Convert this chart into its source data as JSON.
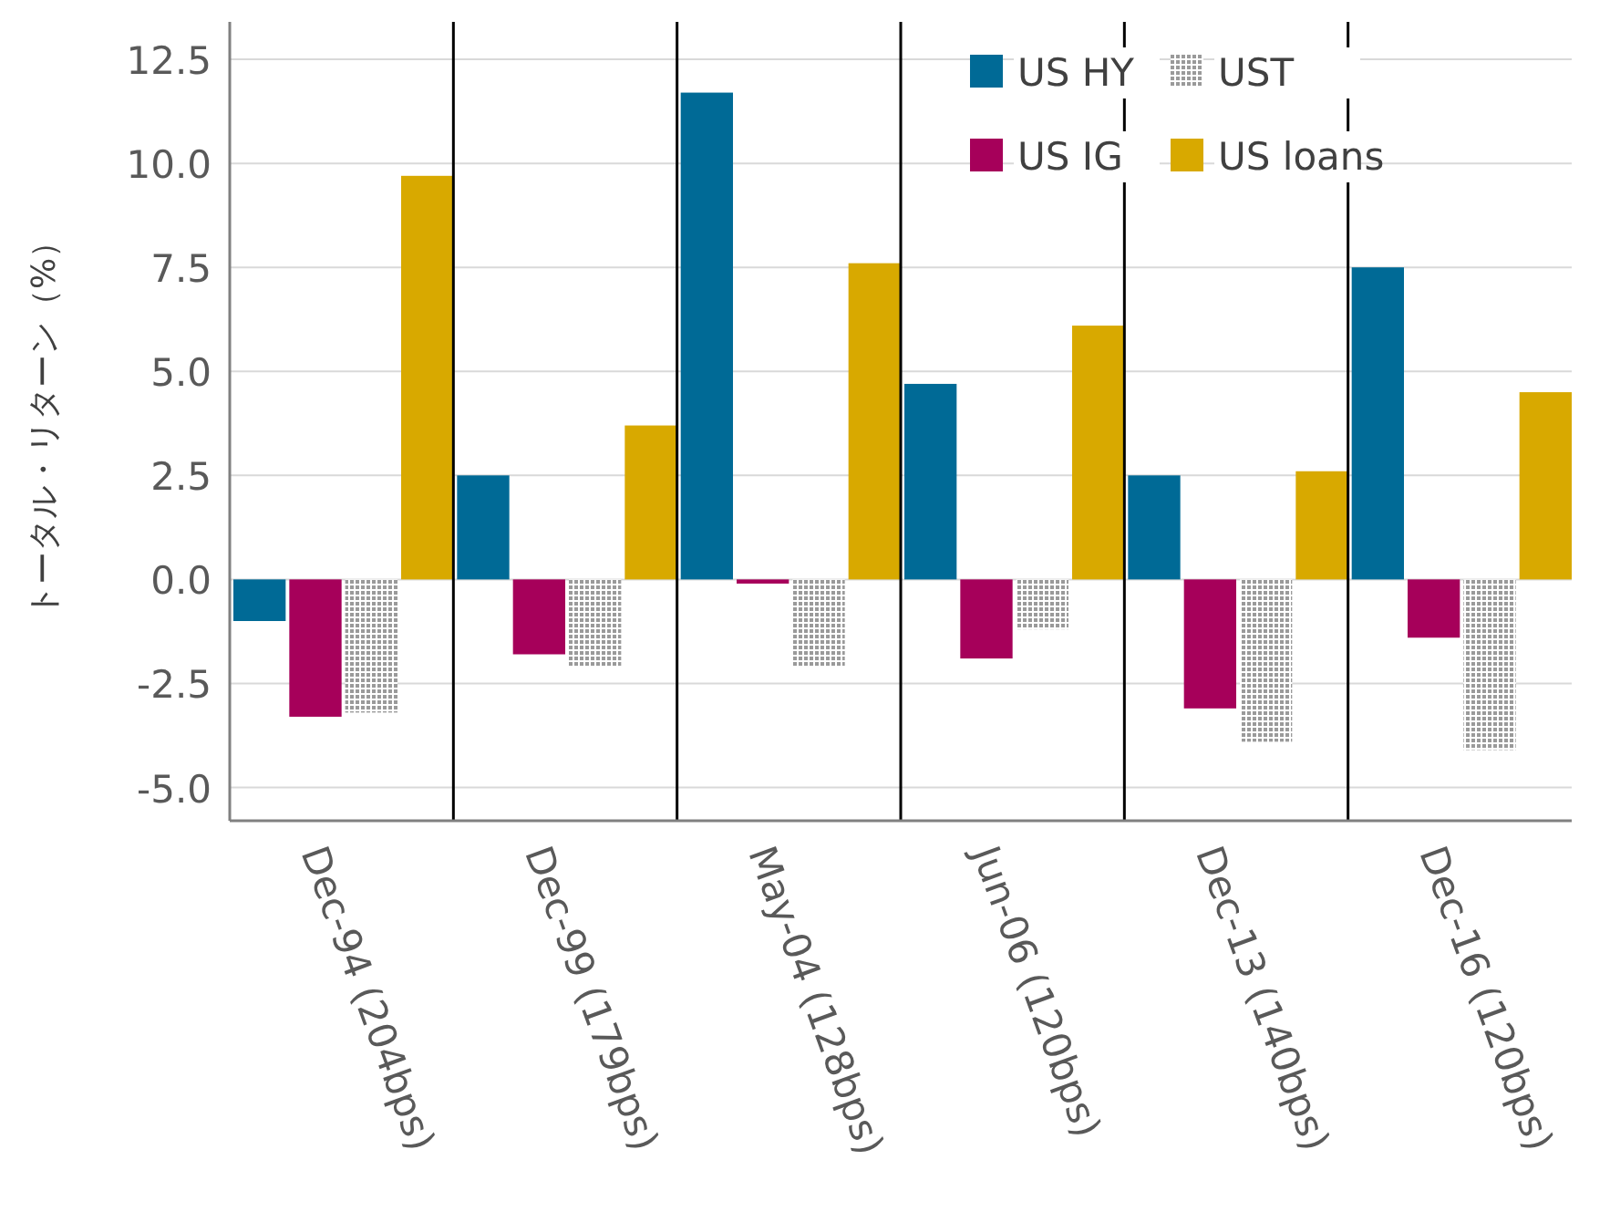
{
  "chart_data": {
    "type": "bar",
    "ylabel": "トータル・リターン（%）",
    "categories": [
      "Dec-94 (204bps)",
      "Dec-99 (179bps)",
      "May-04 (128bps)",
      "Jun-06 (120bps)",
      "Dec-13 (140bps)",
      "Dec-16 (120bps)"
    ],
    "series": [
      {
        "name": "US HY",
        "color": "#006a96",
        "values": [
          -1.0,
          2.5,
          11.7,
          4.7,
          2.5,
          7.5
        ]
      },
      {
        "name": "US IG",
        "color": "#a6005a",
        "values": [
          -3.3,
          -1.8,
          -0.1,
          -1.9,
          -3.1,
          -1.4
        ]
      },
      {
        "name": "UST",
        "color": "#9a9a9a",
        "values": [
          -3.2,
          -2.1,
          -2.1,
          -1.2,
          -3.9,
          -4.1
        ]
      },
      {
        "name": "US loans",
        "color": "#d8a900",
        "values": [
          9.7,
          3.7,
          7.6,
          6.1,
          2.6,
          4.5
        ]
      }
    ],
    "ylim": [
      -5.8,
      13.4
    ],
    "yticks": [
      {
        "value": -5,
        "label": "-5.0"
      },
      {
        "value": -2.5,
        "label": "-2.5"
      },
      {
        "value": 0,
        "label": "0.0"
      },
      {
        "value": 2.5,
        "label": "2.5"
      },
      {
        "value": 5,
        "label": "5.0"
      },
      {
        "value": 7.5,
        "label": "7.5"
      },
      {
        "value": 10,
        "label": "10.0"
      },
      {
        "value": 12.5,
        "label": "12.5"
      }
    ],
    "grid": true,
    "legend": "top right"
  }
}
